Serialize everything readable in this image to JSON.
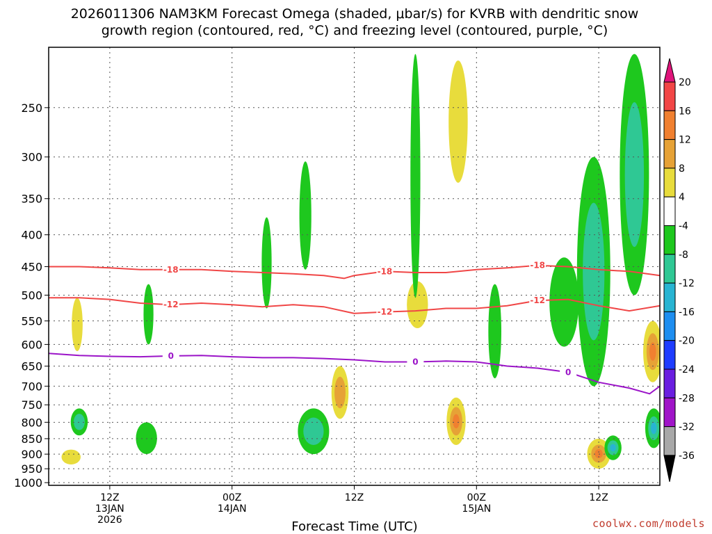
{
  "title_line1": "2026011306 NAM3KM Forecast Omega (shaded, μbar/s) for KVRB with dendritic snow",
  "title_line2": "growth region (contoured, red, °C) and freezing level (contoured, purple, °C)",
  "xlabel": "Forecast Time (UTC)",
  "credit": "coolwx.com/models",
  "chart_data": {
    "type": "heatmap",
    "title": "2026011306 NAM3KM Forecast Omega (shaded, μbar/s) for KVRB with dendritic snow growth region (contoured, red, °C) and freezing level (contoured, purple, °C)",
    "xlabel": "Forecast Time (UTC)",
    "ylabel": "",
    "x_range_hours": [
      0,
      60
    ],
    "y_range_hpa": [
      1000,
      200
    ],
    "y_scale": "log",
    "y_ticks": [
      250,
      300,
      350,
      400,
      450,
      500,
      550,
      600,
      650,
      700,
      750,
      800,
      850,
      900,
      950,
      1000
    ],
    "x_ticks": [
      {
        "hour": 6,
        "label1": "12Z",
        "label2": "13JAN",
        "label3": "2026"
      },
      {
        "hour": 18,
        "label1": "00Z",
        "label2": "14JAN",
        "label3": ""
      },
      {
        "hour": 30,
        "label1": "12Z",
        "label2": "",
        "label3": ""
      },
      {
        "hour": 42,
        "label1": "00Z",
        "label2": "15JAN",
        "label3": ""
      },
      {
        "hour": 54,
        "label1": "12Z",
        "label2": "",
        "label3": ""
      }
    ],
    "grid": true,
    "colorbar": {
      "levels": [
        20,
        16,
        12,
        8,
        4,
        -4,
        -8,
        -12,
        -16,
        -20,
        -24,
        -28,
        -32,
        -36
      ],
      "colors": [
        "#f24646",
        "#f08030",
        "#e6a236",
        "#e8dc3c",
        "#ffffff",
        "#1ec81e",
        "#2fc894",
        "#28b4d2",
        "#1e8ef0",
        "#1e3cff",
        "#6a1ee0",
        "#a014c8",
        "#a8a8a8"
      ],
      "top_color": "#e0147a",
      "bottom_color": "#000000"
    },
    "series": [
      {
        "name": "-18",
        "color": "#f04646",
        "x": [
          0,
          3,
          6,
          9,
          12,
          15,
          18,
          21,
          24,
          27,
          29,
          30,
          33,
          36,
          39,
          42,
          45,
          48,
          51,
          54,
          57,
          60
        ],
        "y": [
          450,
          450,
          452,
          455,
          455,
          455,
          458,
          460,
          462,
          465,
          470,
          465,
          458,
          460,
          460,
          455,
          452,
          448,
          450,
          455,
          458,
          465
        ]
      },
      {
        "name": "-12",
        "color": "#f04646",
        "x": [
          0,
          3,
          6,
          9,
          12,
          15,
          18,
          21,
          24,
          27,
          30,
          33,
          36,
          39,
          42,
          45,
          48,
          51,
          54,
          57,
          60
        ],
        "y": [
          505,
          505,
          508,
          515,
          518,
          515,
          518,
          522,
          518,
          522,
          535,
          532,
          530,
          525,
          525,
          520,
          510,
          508,
          520,
          530,
          520
        ]
      },
      {
        "name": "0",
        "color": "#9b14c8",
        "x": [
          0,
          3,
          6,
          9,
          12,
          15,
          18,
          21,
          24,
          27,
          30,
          33,
          36,
          39,
          42,
          45,
          48,
          51,
          54,
          57,
          59,
          60
        ],
        "y": [
          620,
          625,
          627,
          628,
          626,
          625,
          628,
          630,
          630,
          632,
          635,
          640,
          640,
          638,
          640,
          650,
          655,
          665,
          690,
          705,
          720,
          700
        ]
      }
    ],
    "omega_regions": [
      {
        "x": 40.2,
        "y": 270,
        "w": 1.6,
        "dy": 120,
        "value": 5
      },
      {
        "x": 36.2,
        "y": 520,
        "w": 1.8,
        "dy": 90,
        "value": 5
      },
      {
        "x": 28.6,
        "y": 720,
        "w": 1.4,
        "dy": 140,
        "value": 10
      },
      {
        "x": 40.0,
        "y": 800,
        "w": 1.6,
        "dy": 140,
        "value": 12
      },
      {
        "x": 54.0,
        "y": 900,
        "w": 2.0,
        "dy": 100,
        "value": 14
      },
      {
        "x": 59.3,
        "y": 620,
        "w": 1.6,
        "dy": 140,
        "value": 14
      },
      {
        "x": 2.2,
        "y": 910,
        "w": 1.6,
        "dy": 50,
        "value": 5
      },
      {
        "x": 2.8,
        "y": 560,
        "w": 0.8,
        "dy": 110,
        "value": 5
      },
      {
        "x": 36.0,
        "y": 330,
        "w": 0.7,
        "dy": 350,
        "value": -6
      },
      {
        "x": 53.5,
        "y": 500,
        "w": 3.0,
        "dy": 400,
        "value": -10
      },
      {
        "x": 57.5,
        "y": 350,
        "w": 2.6,
        "dy": 300,
        "value": -8
      },
      {
        "x": 25.2,
        "y": 380,
        "w": 0.9,
        "dy": 150,
        "value": -6
      },
      {
        "x": 21.4,
        "y": 450,
        "w": 0.7,
        "dy": 150,
        "value": -6
      },
      {
        "x": 9.8,
        "y": 540,
        "w": 0.7,
        "dy": 120,
        "value": -6
      },
      {
        "x": 43.8,
        "y": 580,
        "w": 1.0,
        "dy": 200,
        "value": -6
      },
      {
        "x": 50.6,
        "y": 520,
        "w": 2.6,
        "dy": 170,
        "value": -6
      },
      {
        "x": 26.0,
        "y": 830,
        "w": 2.8,
        "dy": 140,
        "value": -10
      },
      {
        "x": 9.6,
        "y": 850,
        "w": 1.8,
        "dy": 100,
        "value": -6
      },
      {
        "x": 3.0,
        "y": 800,
        "w": 1.4,
        "dy": 80,
        "value": -8
      },
      {
        "x": 59.4,
        "y": 820,
        "w": 1.4,
        "dy": 120,
        "value": -12
      },
      {
        "x": 55.4,
        "y": 880,
        "w": 1.4,
        "dy": 80,
        "value": -12
      }
    ],
    "terrain_hpa": 1010
  }
}
